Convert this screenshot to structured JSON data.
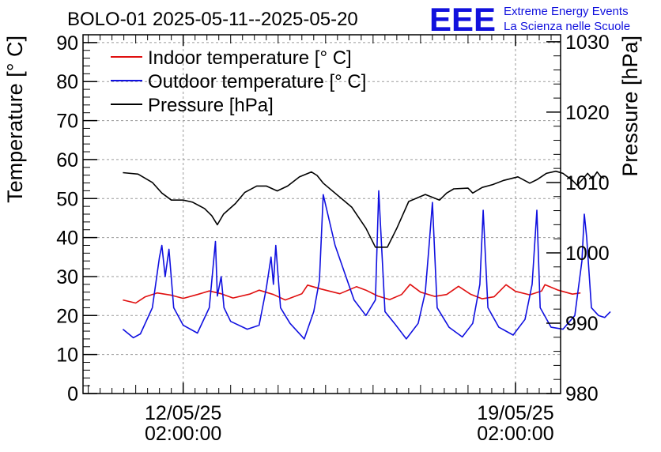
{
  "chart_data": {
    "type": "line",
    "title": "BOLO-01 2025-05-11--2025-05-20",
    "logo": {
      "mark": "EEE",
      "line1": "Extreme Energy Events",
      "line2": "La Scienza nelle Scuole",
      "color": "#1111dd"
    },
    "xaxis": {
      "ticks": [
        {
          "t": 1.0,
          "date": "12/05/25",
          "time": "02:00:00"
        },
        {
          "t": 8.0,
          "date": "19/05/25",
          "time": "02:00:00"
        }
      ],
      "range_days": [
        -1.11,
        8.95
      ]
    },
    "ylabel_left": "Temperature [° C]",
    "ylabel_right": "Pressure [hPa]",
    "ylim_left": [
      0,
      92
    ],
    "ylim_right": [
      980,
      1031
    ],
    "yticks_left": [
      0,
      10,
      20,
      30,
      40,
      50,
      60,
      70,
      80,
      90
    ],
    "yticks_right": [
      980,
      990,
      1000,
      1010,
      1020,
      1030
    ],
    "grid": true,
    "legend_position": "top-left",
    "series": [
      {
        "name": "Indoor temperature [° C]",
        "color": "#e01010",
        "axis": "left",
        "points": [
          [
            -0.27,
            24
          ],
          [
            0.0,
            23.2
          ],
          [
            0.2,
            24.8
          ],
          [
            0.45,
            25.8
          ],
          [
            0.75,
            25.2
          ],
          [
            1.0,
            24.4
          ],
          [
            1.3,
            25.4
          ],
          [
            1.55,
            26.3
          ],
          [
            1.8,
            25.6
          ],
          [
            2.05,
            24.5
          ],
          [
            2.4,
            25.5
          ],
          [
            2.6,
            26.5
          ],
          [
            2.9,
            25.4
          ],
          [
            3.15,
            24.0
          ],
          [
            3.5,
            25.6
          ],
          [
            3.62,
            27.8
          ],
          [
            3.9,
            26.8
          ],
          [
            4.3,
            25.6
          ],
          [
            4.65,
            27.4
          ],
          [
            4.85,
            26.5
          ],
          [
            5.1,
            25.0
          ],
          [
            5.35,
            24.1
          ],
          [
            5.6,
            25.4
          ],
          [
            5.78,
            28.0
          ],
          [
            6.0,
            26.0
          ],
          [
            6.3,
            24.9
          ],
          [
            6.55,
            25.4
          ],
          [
            6.8,
            27.5
          ],
          [
            7.05,
            25.5
          ],
          [
            7.3,
            24.3
          ],
          [
            7.55,
            24.8
          ],
          [
            7.8,
            27.9
          ],
          [
            8.0,
            26.2
          ],
          [
            8.3,
            25.3
          ],
          [
            8.55,
            26.3
          ],
          [
            8.62,
            27.9
          ],
          [
            8.9,
            26.5
          ],
          [
            9.2,
            25.5
          ],
          [
            9.37,
            25.8
          ]
        ]
      },
      {
        "name": "Outdoor temperature [° C]",
        "color": "#1010e0",
        "axis": "left",
        "points": [
          [
            -0.27,
            16.5
          ],
          [
            -0.05,
            14.3
          ],
          [
            0.1,
            15.3
          ],
          [
            0.35,
            22
          ],
          [
            0.5,
            35
          ],
          [
            0.55,
            38
          ],
          [
            0.62,
            30
          ],
          [
            0.7,
            37
          ],
          [
            0.8,
            22
          ],
          [
            1.0,
            17.5
          ],
          [
            1.3,
            15.5
          ],
          [
            1.55,
            22
          ],
          [
            1.68,
            39
          ],
          [
            1.72,
            25
          ],
          [
            1.8,
            30
          ],
          [
            1.86,
            22
          ],
          [
            2.0,
            18.5
          ],
          [
            2.35,
            16.5
          ],
          [
            2.6,
            17.5
          ],
          [
            2.75,
            27
          ],
          [
            2.85,
            35
          ],
          [
            2.9,
            28
          ],
          [
            2.95,
            38
          ],
          [
            3.05,
            22
          ],
          [
            3.25,
            18
          ],
          [
            3.55,
            14
          ],
          [
            3.75,
            21
          ],
          [
            3.87,
            29
          ],
          [
            3.95,
            51
          ],
          [
            4.2,
            38
          ],
          [
            4.6,
            24
          ],
          [
            4.85,
            20
          ],
          [
            5.05,
            24
          ],
          [
            5.12,
            52
          ],
          [
            5.25,
            21
          ],
          [
            5.45,
            18
          ],
          [
            5.7,
            14
          ],
          [
            5.95,
            18
          ],
          [
            6.1,
            26
          ],
          [
            6.18,
            38
          ],
          [
            6.25,
            49
          ],
          [
            6.35,
            22
          ],
          [
            6.6,
            17
          ],
          [
            6.88,
            14.5
          ],
          [
            7.1,
            18
          ],
          [
            7.25,
            28
          ],
          [
            7.32,
            47
          ],
          [
            7.42,
            22
          ],
          [
            7.65,
            17
          ],
          [
            7.95,
            15
          ],
          [
            8.2,
            19
          ],
          [
            8.35,
            28
          ],
          [
            8.45,
            47
          ],
          [
            8.52,
            22
          ],
          [
            8.75,
            17
          ],
          [
            9.0,
            16.5
          ],
          [
            9.25,
            20
          ],
          [
            9.4,
            34
          ],
          [
            9.45,
            46
          ],
          [
            9.5,
            40
          ],
          [
            9.6,
            22
          ],
          [
            9.75,
            20
          ],
          [
            9.88,
            19.5
          ],
          [
            10.0,
            21
          ]
        ]
      },
      {
        "name": "Pressure [hPa]",
        "color": "#000000",
        "axis": "right",
        "points": [
          [
            -0.27,
            1011.4
          ],
          [
            0.05,
            1011.2
          ],
          [
            0.35,
            1010.0
          ],
          [
            0.55,
            1008.5
          ],
          [
            0.75,
            1007.5
          ],
          [
            1.0,
            1007.5
          ],
          [
            1.2,
            1007.2
          ],
          [
            1.45,
            1006.3
          ],
          [
            1.6,
            1005.3
          ],
          [
            1.72,
            1004.0
          ],
          [
            1.85,
            1005.5
          ],
          [
            2.1,
            1007.0
          ],
          [
            2.3,
            1008.6
          ],
          [
            2.55,
            1009.5
          ],
          [
            2.75,
            1009.5
          ],
          [
            2.98,
            1008.8
          ],
          [
            3.2,
            1009.5
          ],
          [
            3.45,
            1010.8
          ],
          [
            3.7,
            1011.5
          ],
          [
            3.82,
            1011.0
          ],
          [
            3.95,
            1009.9
          ],
          [
            4.55,
            1006.5
          ],
          [
            4.85,
            1003.5
          ],
          [
            5.05,
            1000.8
          ],
          [
            5.3,
            1000.8
          ],
          [
            5.5,
            1003.5
          ],
          [
            5.75,
            1007.3
          ],
          [
            6.1,
            1008.3
          ],
          [
            6.4,
            1007.5
          ],
          [
            6.55,
            1008.5
          ],
          [
            6.7,
            1009.1
          ],
          [
            7.0,
            1009.2
          ],
          [
            7.1,
            1008.5
          ],
          [
            7.3,
            1009.3
          ],
          [
            7.52,
            1009.7
          ],
          [
            7.75,
            1010.3
          ],
          [
            8.05,
            1010.8
          ],
          [
            8.3,
            1009.9
          ],
          [
            8.45,
            1010.4
          ],
          [
            8.65,
            1011.3
          ],
          [
            8.85,
            1011.6
          ],
          [
            9.0,
            1011.3
          ],
          [
            9.2,
            1010.3
          ],
          [
            9.3,
            1009.6
          ],
          [
            9.42,
            1010.5
          ],
          [
            9.52,
            1011.3
          ],
          [
            9.62,
            1010.5
          ],
          [
            9.72,
            1011.5
          ],
          [
            9.8,
            1010.8
          ],
          [
            9.87,
            1010.6
          ]
        ]
      }
    ]
  }
}
